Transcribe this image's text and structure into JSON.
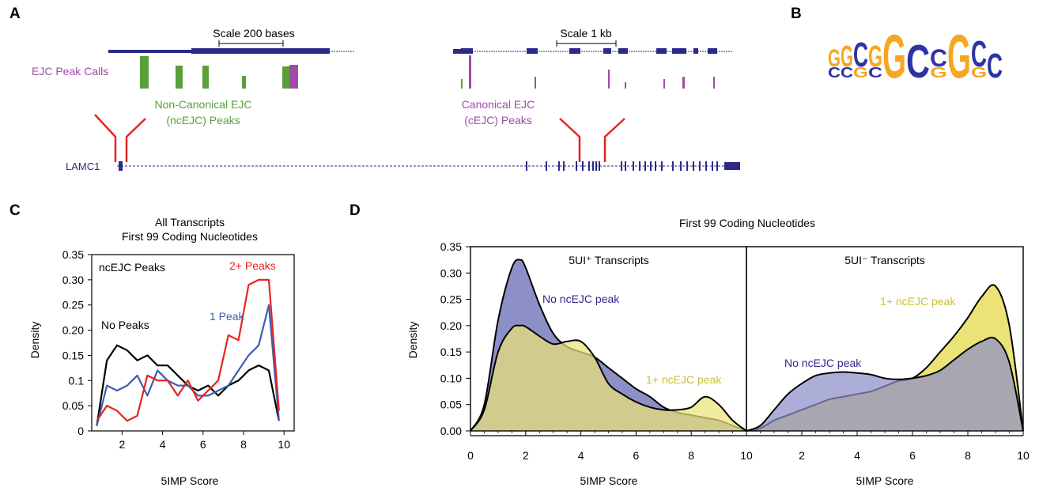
{
  "panel_a": {
    "letter": "A",
    "scale_left": "Scale 200 bases",
    "scale_right": "Scale 1 kb",
    "track_label": "EJC Peak Calls",
    "noncanonical_label": [
      "Non-Canonical EJC",
      "(ncEJC) Peaks"
    ],
    "canonical_label": [
      "Canonical EJC",
      "(cEJC) Peaks"
    ],
    "gene_name": "LAMC1",
    "colors": {
      "gene": "#2b2a8a",
      "nc_peak": "#5aa03a",
      "c_peak": "#a14aa7",
      "zoom_lines": "#e8231e"
    }
  },
  "panel_b": {
    "letter": "B",
    "motif_icon": "sequence-logo",
    "logo_top": [
      "G",
      "G",
      "C",
      "G",
      "G",
      "C",
      "C",
      "G",
      "C",
      "C"
    ],
    "logo_bottom": [
      "C",
      "C",
      "G",
      "C",
      "",
      "",
      "G",
      "",
      "G",
      ""
    ],
    "colors": {
      "G": "#f6a623",
      "C": "#2d33a6"
    }
  },
  "chart_data": [
    {
      "panel": "C",
      "type": "line",
      "title": "All Transcripts",
      "subtitle": "First 99 Coding Nucleotides",
      "xlabel": "5IMP Score",
      "ylabel": "Density",
      "xlim": [
        0.5,
        10.5
      ],
      "ylim": [
        0,
        0.35
      ],
      "xticks": [
        "2",
        "4",
        "6",
        "8",
        "10"
      ],
      "yticks": [
        "0",
        "0.05",
        "0.1",
        "0.15",
        "0.20",
        "0.25",
        "0.30",
        "0.35"
      ],
      "legend_title": "ncEJC Peaks",
      "x": [
        0.75,
        1.25,
        1.75,
        2.25,
        2.75,
        3.25,
        3.75,
        4.25,
        4.75,
        5.25,
        5.75,
        6.25,
        6.75,
        7.25,
        7.75,
        8.25,
        8.75,
        9.25,
        9.75
      ],
      "series": [
        {
          "name": "No Peaks",
          "color": "#000000",
          "values": [
            0.01,
            0.14,
            0.17,
            0.16,
            0.14,
            0.15,
            0.13,
            0.13,
            0.11,
            0.09,
            0.08,
            0.09,
            0.07,
            0.09,
            0.1,
            0.12,
            0.13,
            0.12,
            0.02
          ]
        },
        {
          "name": "1 Peak",
          "color": "#3a5fb0",
          "values": [
            0.01,
            0.09,
            0.08,
            0.09,
            0.11,
            0.07,
            0.12,
            0.1,
            0.09,
            0.09,
            0.07,
            0.07,
            0.08,
            0.09,
            0.12,
            0.15,
            0.17,
            0.25,
            0.02
          ]
        },
        {
          "name": "2+ Peaks",
          "color": "#e8231e",
          "values": [
            0.02,
            0.05,
            0.04,
            0.02,
            0.03,
            0.11,
            0.1,
            0.1,
            0.07,
            0.1,
            0.06,
            0.08,
            0.1,
            0.19,
            0.18,
            0.29,
            0.3,
            0.3,
            0.04
          ]
        }
      ]
    },
    {
      "panel": "D",
      "type": "area",
      "title": "First 99 Coding Nucleotides",
      "xlabel": "5IMP Score",
      "ylabel": "Density",
      "xlim": [
        0,
        10
      ],
      "ylim": [
        0,
        0.35
      ],
      "xticks": [
        "0",
        "2",
        "4",
        "6",
        "8",
        "10"
      ],
      "yticks": [
        "0.00",
        "0.05",
        "0.10",
        "0.15",
        "0.20",
        "0.25",
        "0.30",
        "0.35"
      ],
      "facets": [
        {
          "title": "5UI⁺ Transcripts",
          "x": [
            0,
            0.5,
            1,
            1.5,
            1.8,
            2,
            2.5,
            3,
            3.5,
            4,
            4.5,
            5,
            5.5,
            6,
            6.5,
            7,
            7.5,
            8,
            8.5,
            9,
            9.5,
            10
          ],
          "series": [
            {
              "name": "No ncEJC peak",
              "color": "#8d8fc7",
              "values": [
                0.0,
                0.05,
                0.21,
                0.31,
                0.325,
                0.31,
                0.24,
                0.185,
                0.16,
                0.15,
                0.14,
                0.12,
                0.1,
                0.08,
                0.065,
                0.045,
                0.035,
                0.03,
                0.025,
                0.02,
                0.01,
                0.0
              ]
            },
            {
              "name": "1+ ncEJC peak",
              "color": "#ebe377",
              "values": [
                0.0,
                0.04,
                0.15,
                0.195,
                0.2,
                0.198,
                0.18,
                0.165,
                0.17,
                0.17,
                0.14,
                0.09,
                0.07,
                0.055,
                0.045,
                0.04,
                0.04,
                0.045,
                0.065,
                0.05,
                0.02,
                0.0
              ]
            }
          ]
        },
        {
          "title": "5UI⁻ Transcripts",
          "x": [
            0,
            0.5,
            1,
            1.5,
            2,
            2.5,
            3,
            3.5,
            4,
            4.5,
            5,
            5.5,
            6,
            6.5,
            7,
            7.5,
            8,
            8.5,
            9,
            9.5,
            10
          ],
          "series": [
            {
              "name": "No ncEJC peak",
              "color": "#8d8fc7",
              "values": [
                0.0,
                0.01,
                0.04,
                0.07,
                0.09,
                0.105,
                0.11,
                0.112,
                0.11,
                0.107,
                0.1,
                0.098,
                0.1,
                0.105,
                0.115,
                0.135,
                0.155,
                0.17,
                0.175,
                0.13,
                0.0
              ]
            },
            {
              "name": "1+ ncEJC peak",
              "color": "#ebe377",
              "values": [
                0.0,
                0.005,
                0.02,
                0.03,
                0.04,
                0.05,
                0.06,
                0.065,
                0.07,
                0.075,
                0.085,
                0.095,
                0.1,
                0.12,
                0.15,
                0.18,
                0.215,
                0.255,
                0.275,
                0.2,
                0.0
              ]
            }
          ]
        }
      ]
    }
  ]
}
